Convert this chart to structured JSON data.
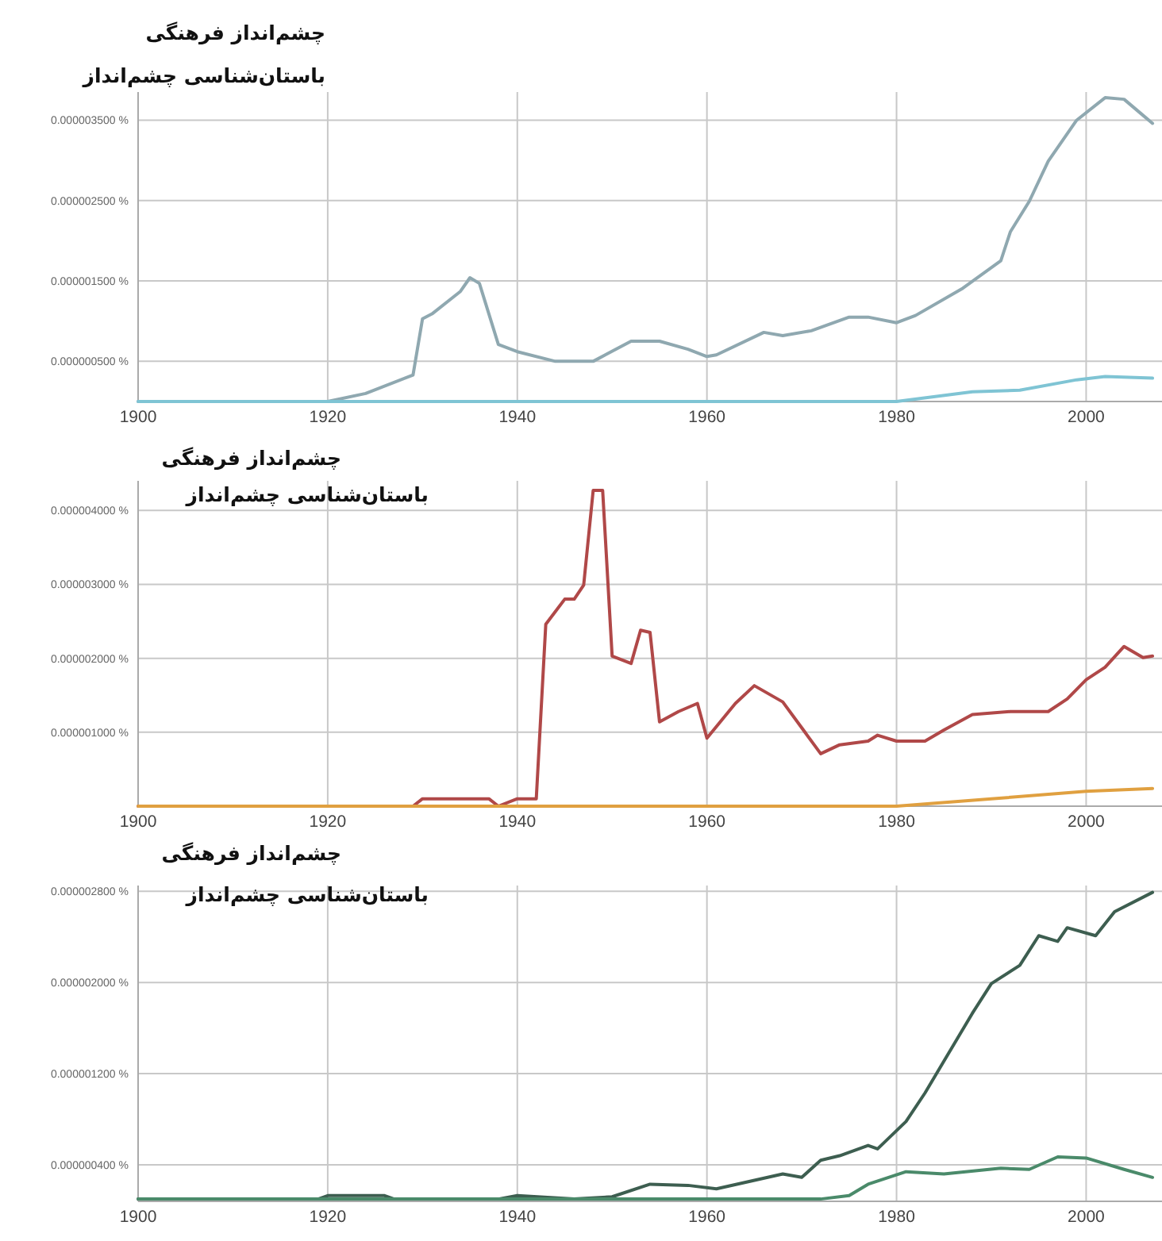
{
  "chart_data": [
    {
      "type": "line",
      "title": "چشم‌انداز فرهنگی",
      "subtitle": "باستان‌شناسی چشم‌انداز",
      "grid": true,
      "xlim": [
        1900,
        2008
      ],
      "xticks": [
        1900,
        1920,
        1940,
        1960,
        1980,
        2000
      ],
      "ylim": [
        0,
        3.85e-06
      ],
      "yticks": [
        {
          "value": 5e-07,
          "label": "0.000000500 %"
        },
        {
          "value": 1.5e-06,
          "label": "0.000001500 %"
        },
        {
          "value": 2.5e-06,
          "label": "0.000002500 %"
        },
        {
          "value": 3.5e-06,
          "label": "0.000003500 %"
        }
      ],
      "series": [
        {
          "color": "#8fa8b0",
          "x": [
            1900,
            1910,
            1920,
            1924,
            1929,
            1930,
            1931,
            1934,
            1935,
            1936,
            1938,
            1940,
            1944,
            1946,
            1948,
            1952,
            1955,
            1958,
            1960,
            1961,
            1966,
            1968,
            1971,
            1975,
            1977,
            1980,
            1982,
            1987,
            1991,
            1992,
            1994,
            1996,
            1999,
            2002,
            2004,
            2006,
            2007
          ],
          "values": [
            0,
            0,
            0,
            1e-07,
            3.3e-07,
            1.03e-06,
            1.09e-06,
            1.37e-06,
            1.54e-06,
            1.47e-06,
            7.1e-07,
            6.2e-07,
            5e-07,
            5e-07,
            5e-07,
            7.5e-07,
            7.5e-07,
            6.5e-07,
            5.6e-07,
            5.8e-07,
            8.6e-07,
            8.2e-07,
            8.8e-07,
            1.05e-06,
            1.05e-06,
            9.8e-07,
            1.07e-06,
            1.41e-06,
            1.75e-06,
            2.11e-06,
            2.49e-06,
            2.99e-06,
            3.5e-06,
            3.78e-06,
            3.76e-06,
            3.56e-06,
            3.46e-06
          ]
        },
        {
          "color": "#7fc4d4",
          "x": [
            1900,
            1940,
            1970,
            1980,
            1988,
            1993,
            1999,
            2002,
            2007
          ],
          "values": [
            0,
            0,
            0,
            0,
            1.2e-07,
            1.4e-07,
            2.7e-07,
            3.1e-07,
            2.9e-07
          ]
        }
      ]
    },
    {
      "type": "line",
      "title": "چشم‌انداز فرهنگی",
      "subtitle": "باستان‌شناسی چشم‌انداز",
      "grid": true,
      "xlim": [
        1900,
        2008
      ],
      "xticks": [
        1900,
        1920,
        1940,
        1960,
        1980,
        2000
      ],
      "ylim": [
        0,
        4.4e-06
      ],
      "yticks": [
        {
          "value": 1e-06,
          "label": "0.000001000 %"
        },
        {
          "value": 2e-06,
          "label": "0.000002000 %"
        },
        {
          "value": 3e-06,
          "label": "0.000003000 %"
        },
        {
          "value": 4e-06,
          "label": "0.000004000 %"
        }
      ],
      "series": [
        {
          "color": "#b04848",
          "x": [
            1900,
            1929,
            1930,
            1937,
            1938,
            1940,
            1942,
            1943,
            1945,
            1946,
            1947,
            1948,
            1949,
            1950,
            1952,
            1953,
            1954,
            1955,
            1957,
            1959,
            1960,
            1963,
            1965,
            1968,
            1972,
            1974,
            1977,
            1978,
            1980,
            1983,
            1985,
            1988,
            1992,
            1996,
            1998,
            2000,
            2002,
            2004,
            2006,
            2007
          ],
          "values": [
            0,
            0,
            1e-07,
            1e-07,
            0,
            1e-07,
            1e-07,
            2.46e-06,
            2.8e-06,
            2.8e-06,
            2.99e-06,
            4.27e-06,
            4.27e-06,
            2.03e-06,
            1.93e-06,
            2.38e-06,
            2.35e-06,
            1.14e-06,
            1.28e-06,
            1.39e-06,
            9.2e-07,
            1.39e-06,
            1.63e-06,
            1.41e-06,
            7.1e-07,
            8.3e-07,
            8.8e-07,
            9.6e-07,
            8.8e-07,
            8.8e-07,
            1.03e-06,
            1.24e-06,
            1.28e-06,
            1.28e-06,
            1.45e-06,
            1.71e-06,
            1.88e-06,
            2.16e-06,
            2.01e-06,
            2.03e-06
          ]
        },
        {
          "color": "#e0a040",
          "x": [
            1900,
            1940,
            1960,
            1980,
            1990,
            2000,
            2007
          ],
          "values": [
            0,
            0,
            0,
            0,
            1e-07,
            2e-07,
            2.4e-07
          ]
        }
      ]
    },
    {
      "type": "line",
      "title": "چشم‌انداز فرهنگی",
      "subtitle": "باستان‌شناسی چشم‌انداز",
      "grid": true,
      "xlim": [
        1900,
        2008
      ],
      "xticks": [
        1900,
        1920,
        1940,
        1960,
        1980,
        2000
      ],
      "ylim": [
        8e-08,
        2.85e-06
      ],
      "yticks": [
        {
          "value": 4e-07,
          "label": "0.000000400 %"
        },
        {
          "value": 1.2e-06,
          "label": "0.000001200 %"
        },
        {
          "value": 2e-06,
          "label": "0.000002000 %"
        },
        {
          "value": 2.8e-06,
          "label": "0.000002800 %"
        }
      ],
      "series": [
        {
          "color": "#3d5e50",
          "x": [
            1900,
            1919,
            1920,
            1926,
            1927,
            1938,
            1940,
            1946,
            1950,
            1954,
            1958,
            1961,
            1968,
            1970,
            1972,
            1974,
            1977,
            1978,
            1981,
            1983,
            1985,
            1988,
            1990,
            1993,
            1995,
            1997,
            1998,
            2001,
            2003,
            2007
          ],
          "values": [
            1e-07,
            1e-07,
            1.3e-07,
            1.3e-07,
            1e-07,
            1e-07,
            1.3e-07,
            1e-07,
            1.2e-07,
            2.3e-07,
            2.2e-07,
            1.9e-07,
            3.2e-07,
            2.9e-07,
            4.4e-07,
            4.8e-07,
            5.7e-07,
            5.4e-07,
            7.8e-07,
            1.03e-06,
            1.31e-06,
            1.73e-06,
            1.99e-06,
            2.15e-06,
            2.41e-06,
            2.36e-06,
            2.48e-06,
            2.41e-06,
            2.62e-06,
            2.79e-06
          ]
        },
        {
          "color": "#4a8a6a",
          "x": [
            1900,
            1972,
            1975,
            1977,
            1981,
            1985,
            1991,
            1994,
            1997,
            2000,
            2004,
            2007
          ],
          "values": [
            1e-07,
            1e-07,
            1.3e-07,
            2.3e-07,
            3.4e-07,
            3.2e-07,
            3.7e-07,
            3.6e-07,
            4.7e-07,
            4.6e-07,
            3.6e-07,
            2.9e-07
          ]
        }
      ]
    }
  ]
}
